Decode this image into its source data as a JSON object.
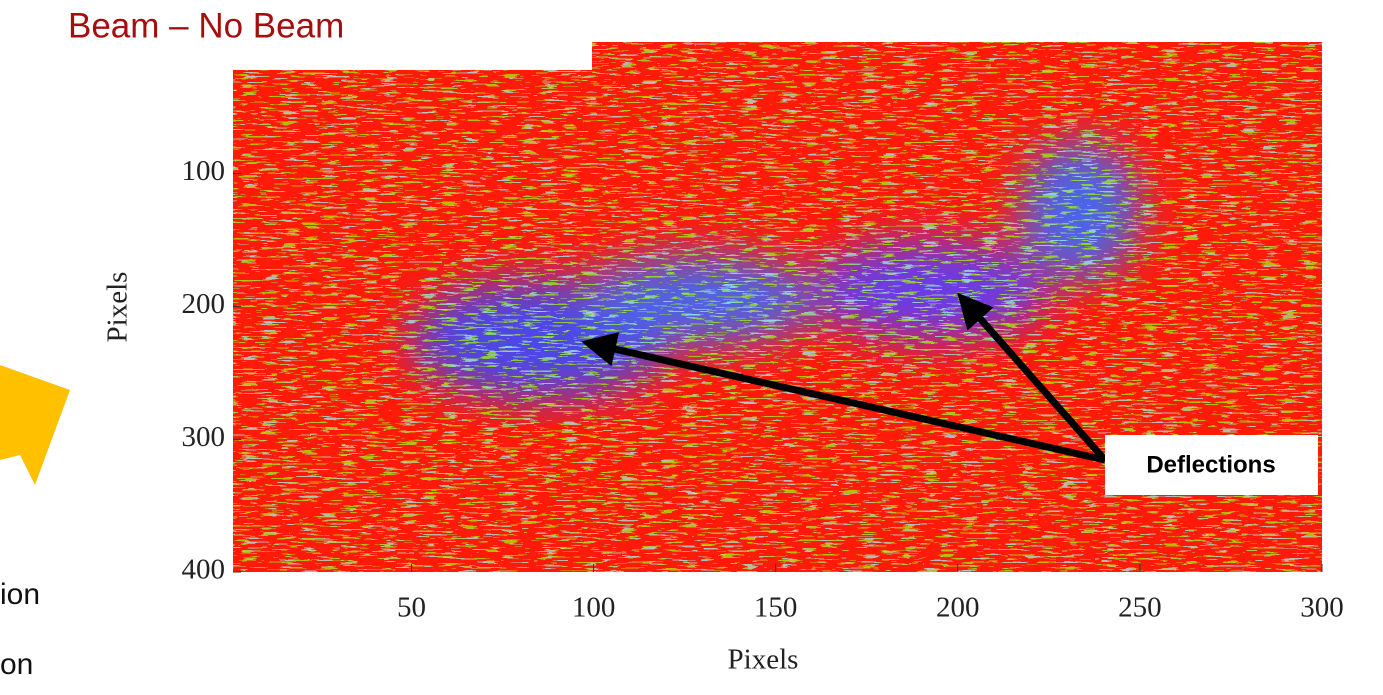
{
  "chart_data": {
    "type": "heatmap",
    "title": "Beam – No Beam",
    "xlabel": "Pixels",
    "ylabel": "Pixels",
    "xlim": [
      1,
      300
    ],
    "xticks": [
      50,
      100,
      150,
      200,
      250,
      300
    ],
    "ylim": [
      1,
      400
    ],
    "yticks": [
      100,
      200,
      300,
      400
    ],
    "y_reversed": true,
    "annotation": "Deflections"
  },
  "slide": {
    "side_text": [
      "ion",
      "on"
    ]
  }
}
